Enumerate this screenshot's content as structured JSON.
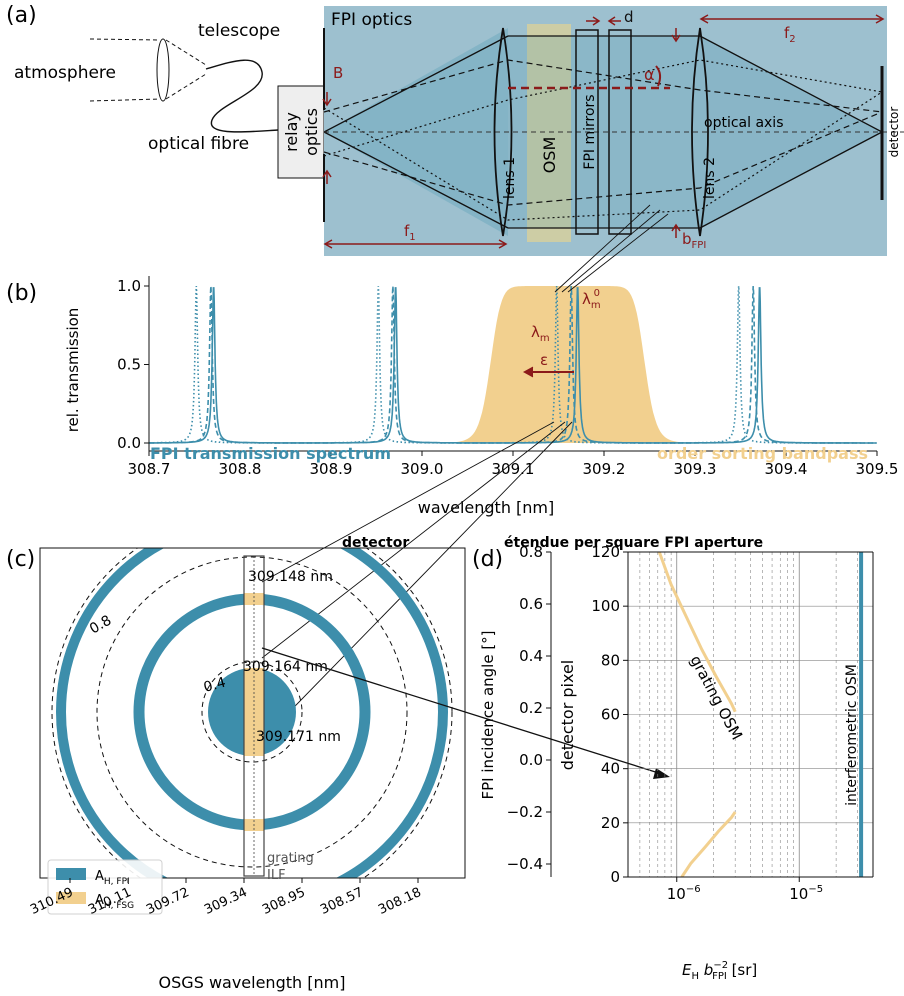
{
  "colors": {
    "fpi": "#3d8eab",
    "osm": "#f2d08f",
    "box": "#9dc0cf",
    "red": "#8b1a1a",
    "black": "#111111"
  },
  "panel_a": {
    "label": "(a)",
    "atmosphere": "atmosphere",
    "telescope": "telescope",
    "fibre": "optical fibre",
    "relay": "relay optics",
    "box_title": "FPI optics",
    "B": "B",
    "d": "d",
    "f2": "f",
    "f2_sub": "2",
    "alpha": "α",
    "lens1": "lens 1",
    "osm": "OSM",
    "mirrors": "FPI mirrors",
    "lens2": "lens 2",
    "axis": "optical axis",
    "detector": "detector",
    "f1": "f",
    "f1_sub": "1",
    "bfpi": "b",
    "bfpi_sub": "FPI"
  },
  "panel_b": {
    "label": "(b)",
    "ylabel": "rel. transmission",
    "xlabel": "wavelength [nm]",
    "left_label": "FPI transmission spectrum",
    "right_label": "order sorting bandpass",
    "lambda_m": "λ",
    "lambda_m_sub": "m",
    "lambda_m0": "λ",
    "lambda_m0_sub": "m",
    "lambda_m0_sup": "0",
    "epsilon": "ε"
  },
  "chart_data": [
    {
      "type": "line",
      "panel": "b",
      "xlabel": "wavelength [nm]",
      "ylabel": "rel. transmission",
      "xlim": [
        308.7,
        309.5
      ],
      "ylim": [
        -0.03,
        1.05
      ],
      "xticks": [
        "308.7",
        "308.8",
        "308.9",
        "309.0",
        "309.1",
        "309.2",
        "309.3",
        "309.4",
        "309.5"
      ],
      "yticks": [
        "0.0",
        "0.5",
        "1.0"
      ],
      "series": [
        {
          "name": "FPI transmission spectrum",
          "style": "solid",
          "peaks": [
            308.771,
            308.971,
            309.171,
            309.371
          ]
        },
        {
          "style": "dashed",
          "peaks": [
            308.768,
            308.968,
            309.164,
            309.364
          ]
        },
        {
          "style": "dotted",
          "peaks": [
            308.752,
            308.952,
            309.148,
            309.348
          ]
        },
        {
          "name": "order sorting bandpass",
          "type": "area",
          "center": 309.16,
          "fwhm": 0.17,
          "plateau": 1.0
        }
      ]
    },
    {
      "type": "line",
      "panel": "d",
      "title": "étendue per square FPI aperture",
      "xlabel": "E_H b_FPI^-2 [sr]",
      "ylabel_left": "FPI incidence angle [°]",
      "ylabel_right": "detector pixel",
      "xscale": "log",
      "xlim": [
        4e-07,
        4e-05
      ],
      "ylim_angle": [
        -0.45,
        0.8
      ],
      "ylim_pixel": [
        0,
        120
      ],
      "yticks_left": [
        "−0.4",
        "−0.2",
        "0.0",
        "0.2",
        "0.4",
        "0.6",
        "0.8"
      ],
      "yticks_right": [
        "0",
        "20",
        "40",
        "60",
        "80",
        "100",
        "120"
      ],
      "xticks": [
        "10⁻⁶",
        "10⁻⁵"
      ],
      "series": [
        {
          "name": "grating OSM",
          "x": [
            7.2e-07,
            9e-07,
            1.2e-06,
            1.6e-06,
            2.1e-06,
            2.8e-06,
            3e-06
          ],
          "y": [
            120,
            108,
            96,
            84,
            74,
            64,
            61
          ]
        },
        {
          "x": [
            1.1e-06,
            1.3e-06,
            1.7e-06,
            2.2e-06,
            2.8e-06,
            3e-06
          ],
          "y": [
            0,
            5,
            11,
            17,
            22,
            24
          ]
        },
        {
          "name": "interferometric OSM",
          "x": [
            3.2e-05,
            3.2e-05
          ],
          "y": [
            0,
            120
          ]
        }
      ]
    }
  ],
  "panel_c": {
    "label": "(c)",
    "title": "detector",
    "ring1": "309.148 nm",
    "ring2": "309.164 nm",
    "ring3": "309.171 nm",
    "c08": "0.8",
    "c04": "0.4",
    "grating": "grating",
    "ilf": "ILF",
    "legend_fpi": "A",
    "legend_fpi_sub": "H, FPI",
    "legend_fsg": "A",
    "legend_fsg_sub": "H, FSG",
    "xlabel": "OSGS wavelength [nm]",
    "xticks": [
      "310.49",
      "310.11",
      "309.72",
      "309.34",
      "308.95",
      "308.57",
      "308.18"
    ]
  },
  "panel_d": {
    "label": "(d)",
    "title": "étendue per square FPI aperture",
    "ylabel_left": "FPI incidence angle [°]",
    "ylabel_right": "detector pixel",
    "xlabel_E": "E",
    "xlabel_H": "H",
    "xlabel_b": " b",
    "xlabel_sup": "−2",
    "xlabel_sub": "FPI",
    "xlabel_unit": " [sr]",
    "grating_osm": "grating OSM",
    "interf_osm": "interferometric OSM",
    "x1": "10",
    "x1_sup": "−6",
    "x2": "10",
    "x2_sup": "−5"
  }
}
